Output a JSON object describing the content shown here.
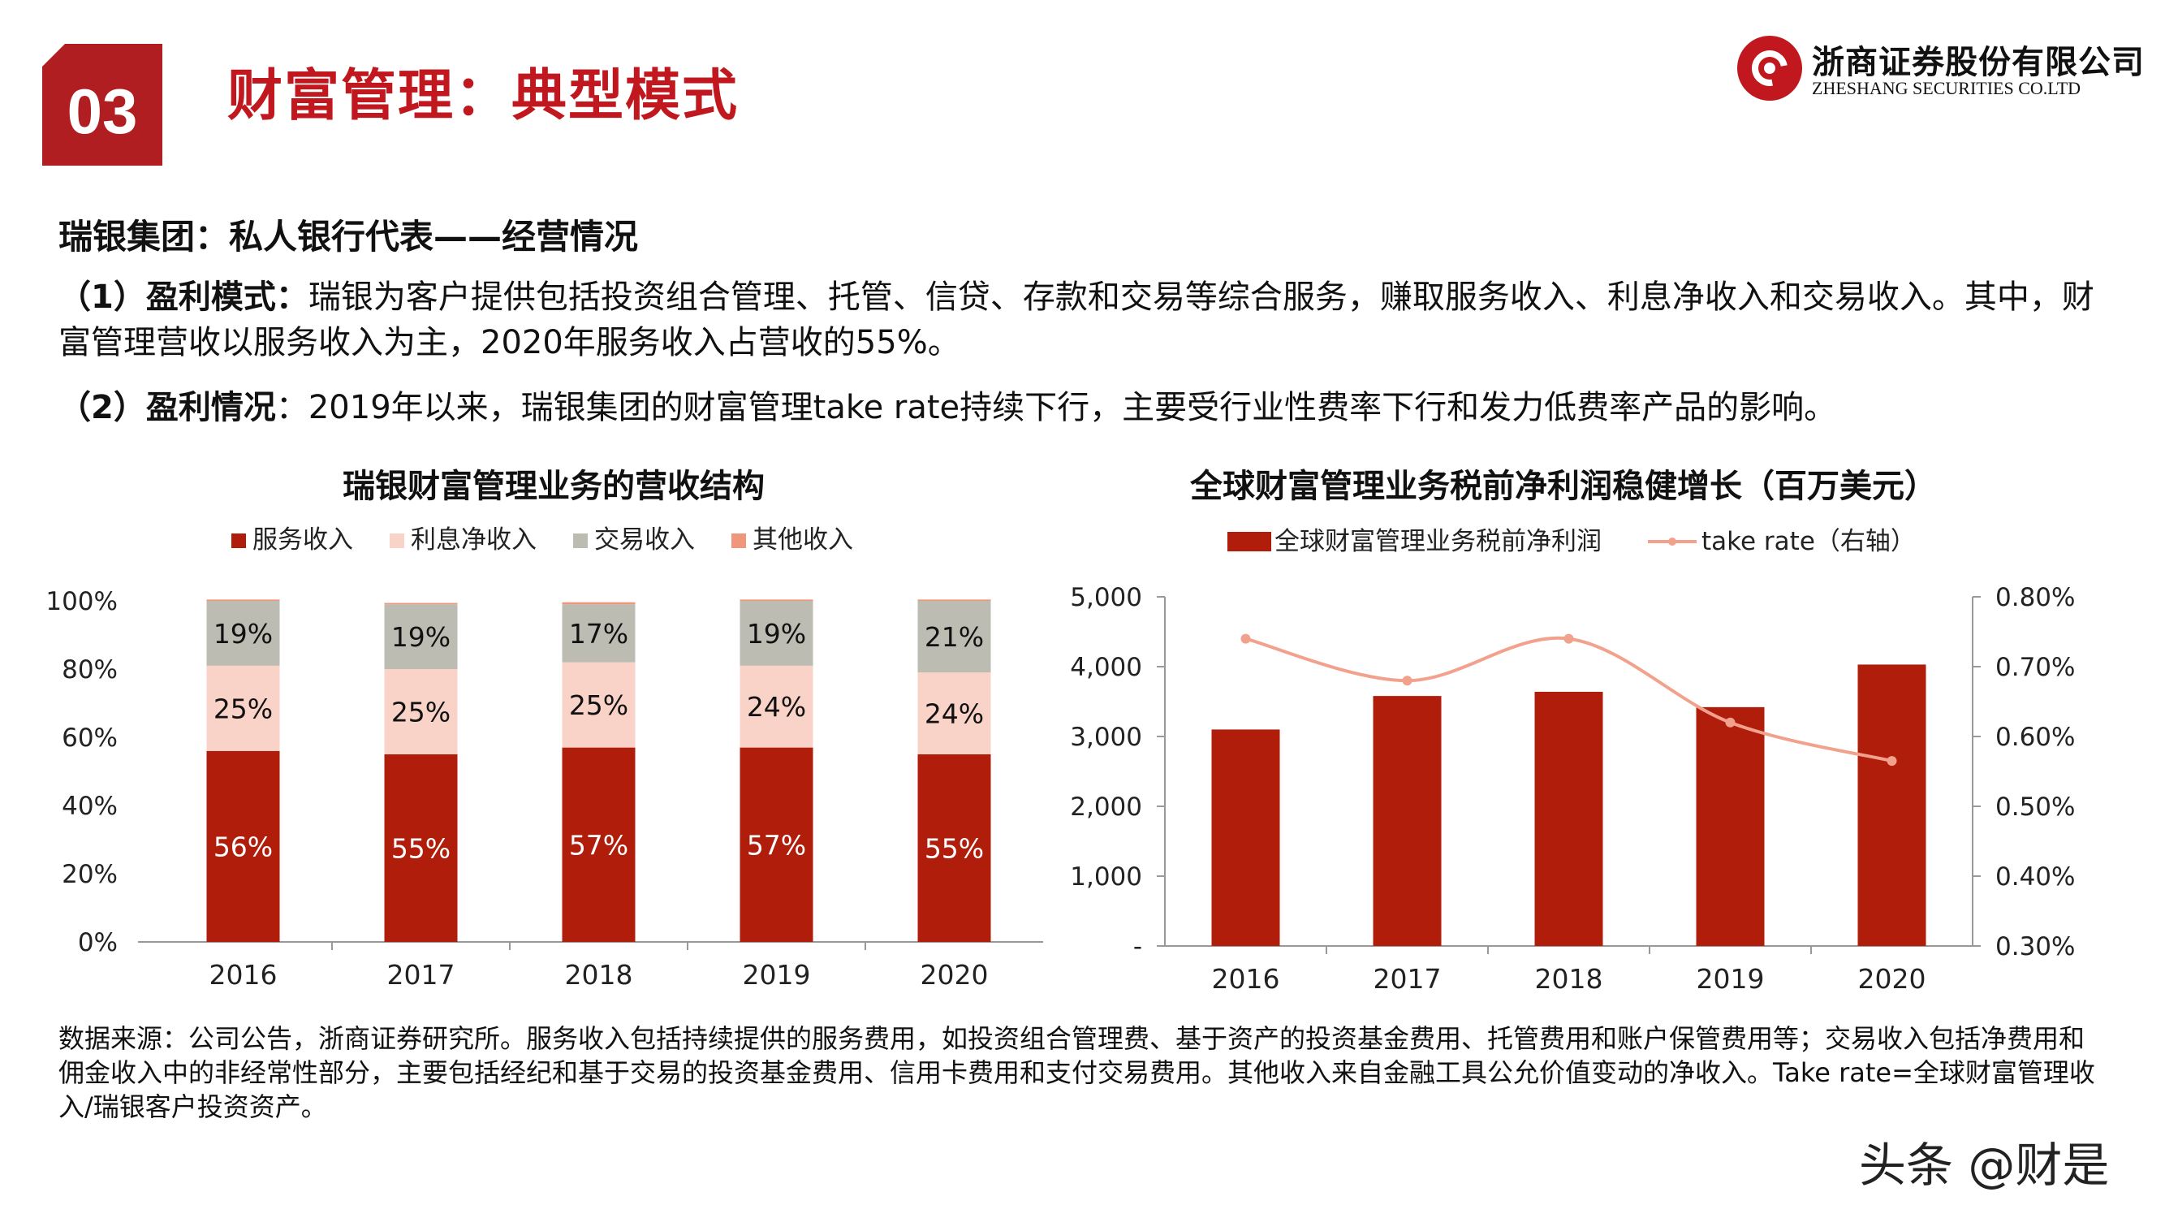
{
  "header": {
    "section_number": "03",
    "title": "财富管理：典型模式",
    "logo_cn": "浙商证券股份有限公司",
    "logo_en": "ZHESHANG SECURITIES CO.LTD",
    "brand_color": "#c0181e"
  },
  "content": {
    "subtitle": "瑞银集团：私人银行代表——经营情况",
    "p1_label": "（1）盈利模式：",
    "p1_text": "瑞银为客户提供包括投资组合管理、托管、信贷、存款和交易等综合服务，赚取服务收入、利息净收入和交易收入。其中，财富管理营收以服务收入为主，2020年服务收入占营收的55%。",
    "p2_label": "（2）盈利情况",
    "p2_text": "：2019年以来，瑞银集团的财富管理take rate持续下行，主要受行业性费率下行和发力低费率产品的影响。"
  },
  "chart_data": [
    {
      "type": "bar",
      "stacked": true,
      "title": "瑞银财富管理业务的营收结构",
      "categories": [
        "2016",
        "2017",
        "2018",
        "2019",
        "2020"
      ],
      "series": [
        {
          "name": "服务收入",
          "color": "#b01e0b",
          "label_color": "#ffffff",
          "values": [
            56,
            55,
            57,
            57,
            55
          ],
          "labels": [
            "56%",
            "55%",
            "57%",
            "57%",
            "55%"
          ]
        },
        {
          "name": "利息净收入",
          "color": "#f9d2c8",
          "label_color": "#111111",
          "values": [
            25,
            25,
            25,
            24,
            24
          ],
          "labels": [
            "25%",
            "25%",
            "25%",
            "24%",
            "24%"
          ]
        },
        {
          "name": "交易收入",
          "color": "#bcbcb2",
          "label_color": "#111111",
          "values": [
            19,
            19,
            17,
            19,
            21
          ],
          "labels": [
            "19%",
            "19%",
            "17%",
            "19%",
            "21%"
          ]
        },
        {
          "name": "其他收入",
          "color": "#f0967a",
          "label_color": "#111111",
          "values": [
            0.4,
            0.4,
            0.6,
            0.4,
            0.4
          ],
          "labels": []
        }
      ],
      "ylim": [
        0,
        100
      ],
      "yticks": [
        "0%",
        "20%",
        "40%",
        "60%",
        "80%",
        "100%"
      ],
      "legend_position": "top"
    },
    {
      "type": "bar+line",
      "title": "全球财富管理业务税前净利润稳健增长（百万美元）",
      "categories": [
        "2016",
        "2017",
        "2018",
        "2019",
        "2020"
      ],
      "bar_series": {
        "name": "全球财富管理业务税前净利润",
        "color": "#b01e0b",
        "values": [
          3100,
          3580,
          3640,
          3420,
          4030
        ]
      },
      "line_series": {
        "name": "take rate（右轴）",
        "color": "#f2a18d",
        "values": [
          0.74,
          0.68,
          0.74,
          0.62,
          0.565
        ]
      },
      "ylim_left": [
        0,
        5000
      ],
      "yticks_left": [
        "-",
        "1,000",
        "2,000",
        "3,000",
        "4,000",
        "5,000"
      ],
      "ylim_right": [
        0.3,
        0.8
      ],
      "yticks_right": [
        "0.30%",
        "0.40%",
        "0.50%",
        "0.60%",
        "0.70%",
        "0.80%"
      ],
      "legend_position": "top"
    }
  ],
  "footer": {
    "note": "数据来源：公司公告，浙商证券研究所。服务收入包括持续提供的服务费用，如投资组合管理费、基于资产的投资基金费用、托管费用和账户保管费用等；交易收入包括净费用和佣金收入中的非经常性部分，主要包括经纪和基于交易的投资基金费用、信用卡费用和支付交易费用。其他收入来自金融工具公允价值变动的净收入。Take rate=全球财富管理收入/瑞银客户投资资产。",
    "watermark": "头条 @财是"
  }
}
